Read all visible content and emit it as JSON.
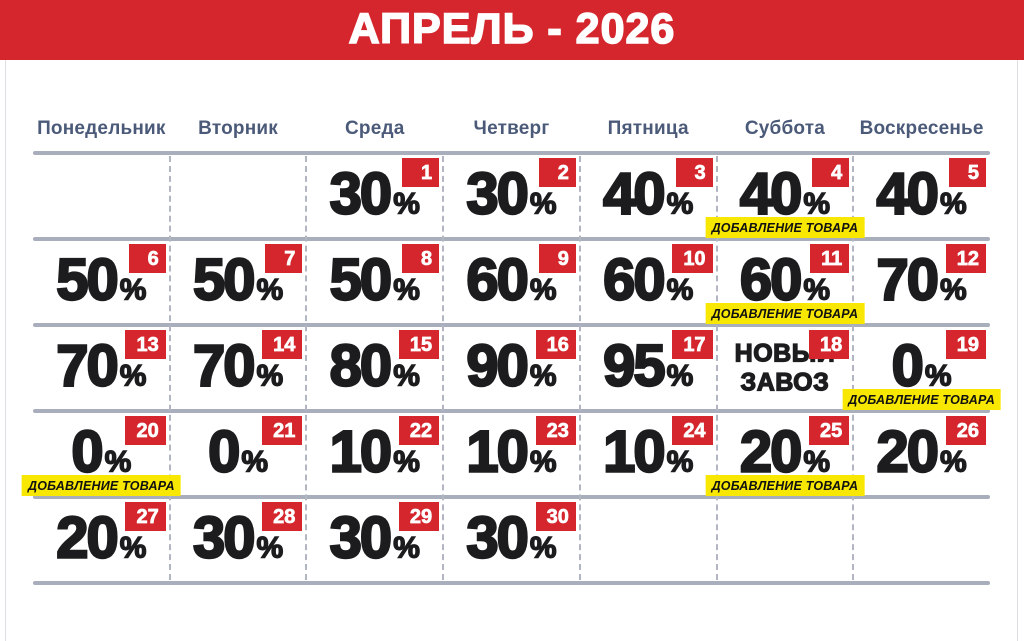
{
  "banner": {
    "title": "АПРЕЛЬ - 2026"
  },
  "weekdays": [
    "Понедельник",
    "Вторник",
    "Среда",
    "Четверг",
    "Пятница",
    "Суббота",
    "Воскресенье"
  ],
  "labels": {
    "restock_note": "ДОБАВЛЕНИЕ ТОВАРА",
    "new_arrival": [
      "НОВЫЙ",
      "ЗАВОЗ"
    ],
    "percent_sign": "%"
  },
  "colors": {
    "accent_red": "#d4262c",
    "weekday_navy": "#4b5a79",
    "note_yellow": "#f8e700",
    "grid_line_gray": "#a9aebc",
    "dash_line_gray": "#b2b6c2",
    "text_black": "#1c1c1e"
  },
  "calendar": {
    "weeks": [
      [
        null,
        null,
        {
          "day": 1,
          "discount": "30"
        },
        {
          "day": 2,
          "discount": "30"
        },
        {
          "day": 3,
          "discount": "40"
        },
        {
          "day": 4,
          "discount": "40",
          "note": true
        },
        {
          "day": 5,
          "discount": "40"
        }
      ],
      [
        {
          "day": 6,
          "discount": "50"
        },
        {
          "day": 7,
          "discount": "50"
        },
        {
          "day": 8,
          "discount": "50"
        },
        {
          "day": 9,
          "discount": "60"
        },
        {
          "day": 10,
          "discount": "60"
        },
        {
          "day": 11,
          "discount": "60",
          "note": true
        },
        {
          "day": 12,
          "discount": "70"
        }
      ],
      [
        {
          "day": 13,
          "discount": "70"
        },
        {
          "day": 14,
          "discount": "70"
        },
        {
          "day": 15,
          "discount": "80"
        },
        {
          "day": 16,
          "discount": "90"
        },
        {
          "day": 17,
          "discount": "95"
        },
        {
          "day": 18,
          "special": true
        },
        {
          "day": 19,
          "discount": "0",
          "note": true
        }
      ],
      [
        {
          "day": 20,
          "discount": "0",
          "note": true
        },
        {
          "day": 21,
          "discount": "0"
        },
        {
          "day": 22,
          "discount": "10"
        },
        {
          "day": 23,
          "discount": "10"
        },
        {
          "day": 24,
          "discount": "10"
        },
        {
          "day": 25,
          "discount": "20",
          "note": true
        },
        {
          "day": 26,
          "discount": "20"
        }
      ],
      [
        {
          "day": 27,
          "discount": "20"
        },
        {
          "day": 28,
          "discount": "30"
        },
        {
          "day": 29,
          "discount": "30"
        },
        {
          "day": 30,
          "discount": "30"
        },
        null,
        null,
        null
      ]
    ]
  }
}
